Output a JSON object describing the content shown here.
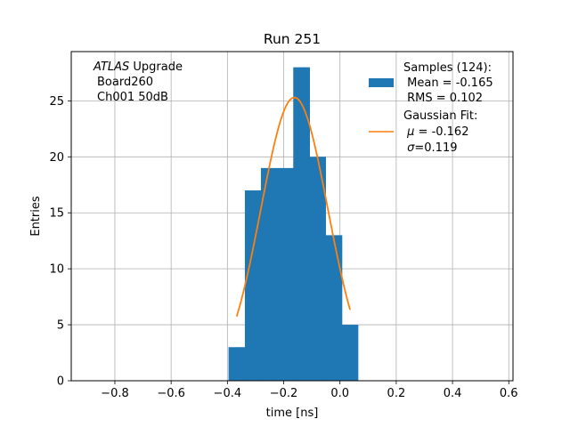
{
  "chart_data": {
    "type": "bar",
    "title": "Run 251",
    "xlabel": "time [ns]",
    "ylabel": "Entries",
    "xlim": [
      -0.955,
      0.615
    ],
    "ylim": [
      0,
      29.4
    ],
    "grid": true,
    "xticks": [
      -0.8,
      -0.6,
      -0.4,
      -0.2,
      0.0,
      0.2,
      0.4,
      0.6
    ],
    "xtick_labels": [
      "−0.8",
      "−0.6",
      "−0.4",
      "−0.2",
      "0.0",
      "0.2",
      "0.4",
      "0.6"
    ],
    "yticks": [
      0,
      5,
      10,
      15,
      20,
      25
    ],
    "ytick_labels": [
      "0",
      "5",
      "10",
      "15",
      "20",
      "25"
    ],
    "annotation": {
      "experiment": "ATLAS",
      "experiment_suffix": " Upgrade",
      "line2": "Board260",
      "line3": "Ch001 50dB"
    },
    "histogram": {
      "name": "Samples (124):",
      "color": "#1f77b4",
      "bin_edges": [
        -0.396,
        -0.338,
        -0.281,
        -0.223,
        -0.166,
        -0.108,
        -0.051,
        0.007,
        0.064
      ],
      "counts": [
        3,
        17,
        19,
        19,
        28,
        20,
        13,
        5
      ],
      "legend_lines": [
        "Samples (124):",
        " Mean = -0.165",
        " RMS = 0.102"
      ]
    },
    "fit": {
      "name": "Gaussian Fit:",
      "color": "#ff7f0e",
      "type": "gaussian",
      "amplitude": 25.3,
      "mu": -0.162,
      "sigma": 0.119,
      "x_range": [
        -0.367,
        0.036
      ],
      "legend_mu_prefix": " μ",
      "legend_mu_value": " = -0.162",
      "legend_sigma_prefix": " σ",
      "legend_sigma_value": "=0.119"
    }
  }
}
